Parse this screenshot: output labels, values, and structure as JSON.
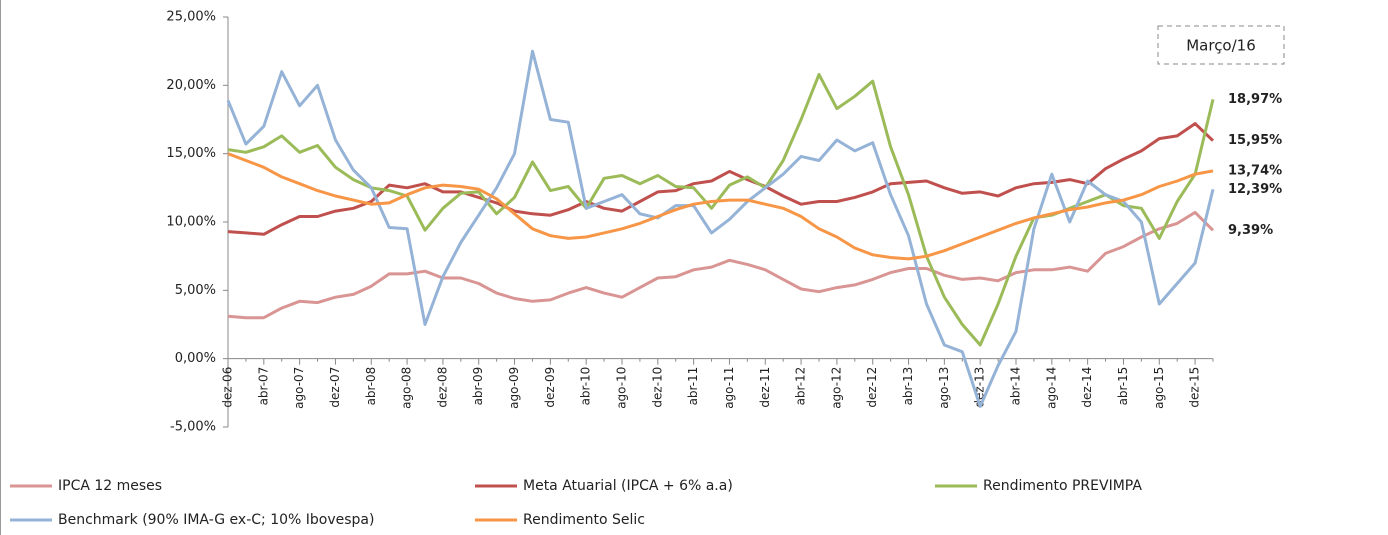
{
  "chart_data": {
    "type": "line",
    "annotation": "Março/16",
    "categories": [
      "dez-06",
      null,
      "abr-07",
      null,
      "ago-07",
      null,
      "dez-07",
      null,
      "abr-08",
      null,
      "ago-08",
      null,
      "dez-08",
      null,
      "abr-09",
      null,
      "ago-09",
      null,
      "dez-09",
      null,
      "abr-10",
      null,
      "ago-10",
      null,
      "dez-10",
      null,
      "abr-11",
      null,
      "ago-11",
      null,
      "dez-11",
      null,
      "abr-12",
      null,
      "ago-12",
      null,
      "dez-12",
      null,
      "abr-13",
      null,
      "ago-13",
      null,
      "dez-13",
      null,
      "abr-14",
      null,
      "ago-14",
      null,
      "dez-14",
      null,
      "abr-15",
      null,
      "ago-15",
      null,
      "dez-15",
      null
    ],
    "ylim": [
      -5,
      25
    ],
    "yticks": [
      {
        "value": -5,
        "label": "-5,00%"
      },
      {
        "value": 0,
        "label": "0,00%"
      },
      {
        "value": 5,
        "label": "5,00%"
      },
      {
        "value": 10,
        "label": "10,00%"
      },
      {
        "value": 15,
        "label": "15,00%"
      },
      {
        "value": 20,
        "label": "20,00%"
      },
      {
        "value": 25,
        "label": "25,00%"
      }
    ],
    "grid": false,
    "series": [
      {
        "name": "IPCA 12 meses",
        "color": "#d99594",
        "label_color": "#e6a3a3",
        "values": [
          3.1,
          3.0,
          3.0,
          3.7,
          4.2,
          4.1,
          4.5,
          4.7,
          5.3,
          6.2,
          6.2,
          6.4,
          5.9,
          5.9,
          5.5,
          4.8,
          4.4,
          4.2,
          4.3,
          4.8,
          5.2,
          4.8,
          4.5,
          5.2,
          5.9,
          6.0,
          6.5,
          6.7,
          7.2,
          6.9,
          6.5,
          5.8,
          5.1,
          4.9,
          5.2,
          5.4,
          5.8,
          6.3,
          6.6,
          6.6,
          6.1,
          5.8,
          5.9,
          5.7,
          6.3,
          6.5,
          6.5,
          6.7,
          6.4,
          7.7,
          8.2,
          8.9,
          9.5,
          9.9,
          10.7,
          9.39
        ],
        "value_labels": [
          null,
          null,
          null,
          null,
          null,
          null,
          null,
          null,
          null,
          null,
          null,
          null,
          null,
          null,
          null,
          null,
          null,
          null,
          null,
          null,
          null,
          null,
          null,
          null,
          null,
          null,
          null,
          null,
          null,
          null,
          null,
          null,
          null,
          null,
          null,
          null,
          null,
          null,
          null,
          null,
          null,
          null,
          null,
          null,
          null,
          null,
          null,
          null,
          null,
          null,
          null,
          null,
          null,
          null,
          null,
          "9,39%"
        ]
      },
      {
        "name": "Meta Atuarial (IPCA + 6% a.a)",
        "color": "#c0504d",
        "label_color": "#c0504d",
        "values": [
          9.3,
          9.2,
          9.1,
          9.8,
          10.4,
          10.4,
          10.8,
          11.0,
          11.5,
          12.7,
          12.5,
          12.8,
          12.2,
          12.2,
          11.8,
          11.4,
          10.8,
          10.6,
          10.5,
          10.9,
          11.5,
          11.0,
          10.8,
          11.5,
          12.2,
          12.3,
          12.8,
          13.0,
          13.7,
          13.1,
          12.6,
          11.9,
          11.3,
          11.5,
          11.5,
          11.8,
          12.2,
          12.8,
          12.9,
          13.0,
          12.5,
          12.1,
          12.2,
          11.9,
          12.5,
          12.8,
          12.9,
          13.1,
          12.8,
          13.9,
          14.6,
          15.2,
          16.1,
          16.3,
          17.2,
          15.95
        ],
        "value_labels": [
          null,
          null,
          null,
          null,
          null,
          null,
          null,
          null,
          null,
          null,
          null,
          null,
          null,
          null,
          null,
          null,
          null,
          null,
          null,
          null,
          null,
          null,
          null,
          null,
          null,
          null,
          null,
          null,
          null,
          null,
          null,
          null,
          null,
          null,
          null,
          null,
          null,
          null,
          null,
          null,
          null,
          null,
          null,
          null,
          null,
          null,
          null,
          null,
          null,
          null,
          null,
          null,
          null,
          null,
          null,
          "15,95%"
        ]
      },
      {
        "name": "Rendimento PREVIMPA",
        "color": "#9bbb59",
        "label_color": "#9bbb59",
        "values": [
          15.3,
          15.1,
          15.5,
          16.3,
          15.1,
          15.6,
          14.0,
          13.1,
          12.5,
          12.3,
          11.9,
          9.4,
          11.0,
          12.1,
          12.2,
          10.6,
          11.8,
          14.4,
          12.3,
          12.6,
          11.0,
          13.2,
          13.4,
          12.8,
          13.4,
          12.6,
          12.5,
          11.0,
          12.7,
          13.3,
          12.5,
          14.5,
          17.5,
          20.8,
          18.3,
          19.2,
          20.3,
          15.5,
          12.0,
          7.5,
          4.5,
          2.5,
          1.0,
          4.0,
          7.5,
          10.3,
          10.5,
          11.0,
          11.5,
          12.0,
          11.2,
          11.0,
          8.8,
          11.5,
          13.5,
          18.97
        ],
        "value_labels": [
          null,
          null,
          null,
          null,
          null,
          null,
          null,
          null,
          null,
          null,
          null,
          null,
          null,
          null,
          null,
          null,
          null,
          null,
          null,
          null,
          null,
          null,
          null,
          null,
          null,
          null,
          null,
          null,
          null,
          null,
          null,
          null,
          null,
          null,
          null,
          null,
          null,
          null,
          null,
          null,
          null,
          null,
          null,
          null,
          null,
          null,
          null,
          null,
          null,
          null,
          null,
          null,
          null,
          null,
          null,
          "18,97%"
        ]
      },
      {
        "name": "Benchmark (90% IMA-G ex-C; 10% Ibovespa)",
        "color": "#95b3d7",
        "label_color": "#4f81bd",
        "values": [
          18.9,
          15.7,
          17.0,
          21.0,
          18.5,
          20.0,
          16.0,
          13.8,
          12.5,
          9.6,
          9.5,
          2.5,
          6.0,
          8.5,
          10.5,
          12.5,
          15.0,
          22.5,
          17.5,
          17.3,
          11.0,
          11.5,
          12.0,
          10.6,
          10.3,
          11.2,
          11.2,
          9.2,
          10.2,
          11.5,
          12.5,
          13.5,
          14.8,
          14.5,
          16.0,
          15.2,
          15.8,
          12.0,
          9.0,
          4.0,
          1.0,
          0.5,
          -3.5,
          -0.5,
          2.0,
          9.5,
          13.5,
          10.0,
          13.0,
          12.0,
          11.5,
          10.0,
          4.0,
          5.5,
          7.0,
          12.39
        ],
        "value_labels": [
          null,
          null,
          null,
          null,
          null,
          null,
          null,
          null,
          null,
          null,
          null,
          null,
          null,
          null,
          null,
          null,
          null,
          null,
          null,
          null,
          null,
          null,
          null,
          null,
          null,
          null,
          null,
          null,
          null,
          null,
          null,
          null,
          null,
          null,
          null,
          null,
          null,
          null,
          null,
          null,
          null,
          null,
          null,
          null,
          null,
          null,
          null,
          null,
          null,
          null,
          null,
          null,
          null,
          null,
          null,
          "12,39%"
        ]
      },
      {
        "name": "Rendimento Selic",
        "color": "#f79646",
        "label_color": "#f79646",
        "values": [
          15.0,
          14.5,
          14.0,
          13.3,
          12.8,
          12.3,
          11.9,
          11.6,
          11.3,
          11.4,
          12.0,
          12.5,
          12.7,
          12.6,
          12.4,
          11.7,
          10.6,
          9.5,
          9.0,
          8.8,
          8.9,
          9.2,
          9.5,
          9.9,
          10.4,
          10.9,
          11.3,
          11.5,
          11.6,
          11.6,
          11.3,
          11.0,
          10.4,
          9.5,
          8.9,
          8.1,
          7.6,
          7.4,
          7.3,
          7.5,
          7.9,
          8.4,
          8.9,
          9.4,
          9.9,
          10.3,
          10.6,
          10.9,
          11.1,
          11.4,
          11.6,
          12.0,
          12.6,
          13.0,
          13.5,
          13.74
        ],
        "value_labels": [
          null,
          null,
          null,
          null,
          null,
          null,
          null,
          null,
          null,
          null,
          null,
          null,
          null,
          null,
          null,
          null,
          null,
          null,
          null,
          null,
          null,
          null,
          null,
          null,
          null,
          null,
          null,
          null,
          null,
          null,
          null,
          null,
          null,
          null,
          null,
          null,
          null,
          null,
          null,
          null,
          null,
          null,
          null,
          null,
          null,
          null,
          null,
          null,
          null,
          null,
          null,
          null,
          null,
          null,
          null,
          "13,74%"
        ]
      }
    ]
  }
}
